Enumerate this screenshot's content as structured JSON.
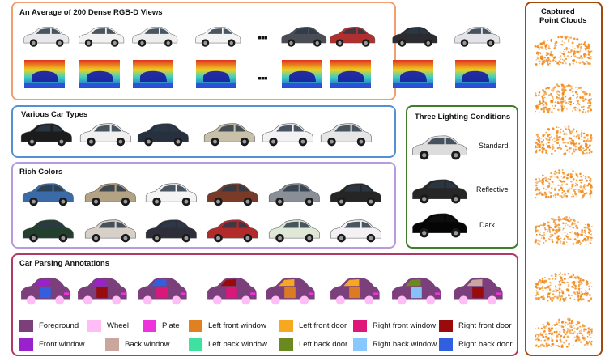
{
  "panels": {
    "rgbd": {
      "title": "An Average of 200 Dense RGB-D Views",
      "border": "#f0a070"
    },
    "types": {
      "title": "Various Car Types",
      "border": "#5590d0"
    },
    "colors": {
      "title": "Rich Colors",
      "border": "#b89ae0"
    },
    "lighting": {
      "title": "Three Lighting Conditions",
      "border": "#3f7d2a",
      "conditions": [
        "Standard",
        "Reflective",
        "Dark"
      ]
    },
    "parsing": {
      "title": "Car Parsing Annotations",
      "border": "#b03a62"
    },
    "pointclouds": {
      "title_line1": "Captured",
      "title_line2": "Point Clouds",
      "border": "#a04a10"
    }
  },
  "ellipsis": "▪▪▪",
  "rgb_view_colors": [
    "#e8e8ec",
    "#f2f2f2",
    "#eeeeee",
    "#f4f4f4",
    "#4a4d55",
    "#b03030",
    "#2b2b30",
    "#e4e4e8"
  ],
  "car_type_colors": [
    "#1c1c1c",
    "#f0f0f0",
    "#27303f",
    "#c8c0a8",
    "#f2f2f4",
    "#e6e6e6"
  ],
  "rich_color_row1": [
    "#3a6aa8",
    "#b3a283",
    "#f4f4f4",
    "#7a3a28",
    "#8a8f97",
    "#252525"
  ],
  "rich_color_row2": [
    "#23402e",
    "#d6d0c8",
    "#2e2e3a",
    "#b22a2a",
    "#dfe7d7",
    "#f3f1f3"
  ],
  "lighting_colors": [
    "#dcdcdc",
    "#262626",
    "#050505"
  ],
  "parsing_classes": [
    {
      "label": "Foreground",
      "color": "#7b3f7b"
    },
    {
      "label": "Wheel",
      "color": "#ffbdf5"
    },
    {
      "label": "Plate",
      "color": "#ee33dd"
    },
    {
      "label": "Left front window",
      "color": "#e08020"
    },
    {
      "label": "Left front door",
      "color": "#f5a820"
    },
    {
      "label": "Right front window",
      "color": "#e0157a"
    },
    {
      "label": "Right front door",
      "color": "#9a0a0a"
    },
    {
      "label": "Front window",
      "color": "#9a22cc"
    },
    {
      "label": "Back window",
      "color": "#c9a79d"
    },
    {
      "label": "Left back window",
      "color": "#40e0a0"
    },
    {
      "label": "Left back door",
      "color": "#6a8a20"
    },
    {
      "label": "Right back window",
      "color": "#88c8ff"
    },
    {
      "label": "Right back door",
      "color": "#3060e0"
    }
  ],
  "point_cloud_color": "#f08a1c"
}
